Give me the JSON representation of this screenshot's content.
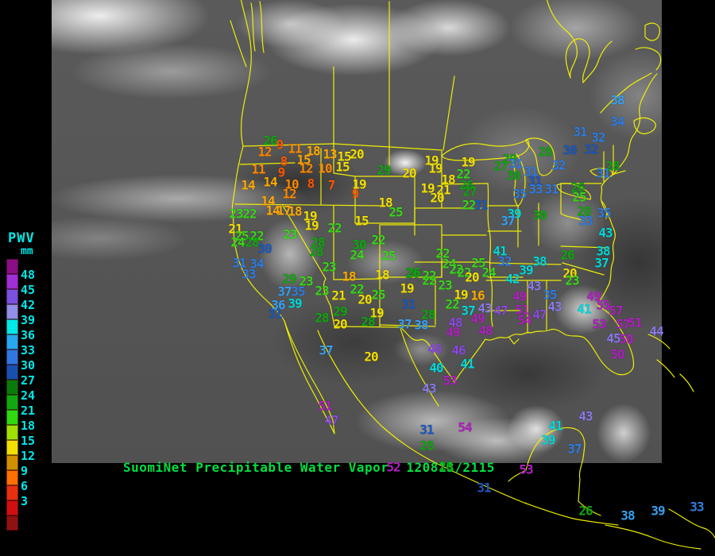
{
  "legend": {
    "title": "PWV",
    "units": "mm",
    "tick_labels": [
      "48",
      "45",
      "42",
      "39",
      "36",
      "33",
      "30",
      "27",
      "24",
      "21",
      "18",
      "15",
      "12",
      "9",
      "6",
      "3"
    ],
    "cells": [
      {
        "label": "",
        "color": "#8a0f86"
      },
      {
        "label": "48",
        "color": "#a02fd8"
      },
      {
        "label": "45",
        "color": "#7a52e2"
      },
      {
        "label": "42",
        "color": "#9090e8"
      },
      {
        "label": "39",
        "color": "#00e8e8"
      },
      {
        "label": "36",
        "color": "#28a8f0"
      },
      {
        "label": "33",
        "color": "#3078e0"
      },
      {
        "label": "30",
        "color": "#1850b0"
      },
      {
        "label": "27",
        "color": "#0a7a0a"
      },
      {
        "label": "24",
        "color": "#10a810"
      },
      {
        "label": "21",
        "color": "#30d810"
      },
      {
        "label": "18",
        "color": "#a0e000"
      },
      {
        "label": "15",
        "color": "#f0e000"
      },
      {
        "label": "12",
        "color": "#d09000"
      },
      {
        "label": "9",
        "color": "#ff7000"
      },
      {
        "label": "6",
        "color": "#e83010"
      },
      {
        "label": "3",
        "color": "#d01010"
      },
      {
        "label": "",
        "color": "#8f1212"
      }
    ]
  },
  "footer": {
    "product": "SuomiNet Precipitable Water Vapor",
    "timestamp": "120813/2115",
    "color": "#00e040"
  },
  "colors": {
    "map_outline": "#f6f600",
    "background": "#000000",
    "legend_text": "#00e8e8"
  },
  "palette": {
    "o9": "#ff5500",
    "o12": "#ff8800",
    "a15": "#ffaa00",
    "y18": "#f2e000",
    "g22": "#38d818",
    "g26": "#0fa80f",
    "b30": "#1b58c0",
    "b32": "#2f7ce2",
    "b36": "#38a0f0",
    "c39": "#00d8d8",
    "v43": "#8878e8",
    "v46": "#8a48e0",
    "p49": "#b020c0"
  },
  "stations": [
    [
      340,
      177,
      "26",
      "g26"
    ],
    [
      352,
      182,
      "9",
      "o9"
    ],
    [
      333,
      191,
      "12",
      "o12"
    ],
    [
      371,
      187,
      "11",
      "o12"
    ],
    [
      394,
      190,
      "18",
      "a15"
    ],
    [
      415,
      194,
      "13",
      "a15"
    ],
    [
      433,
      197,
      "15",
      "y18"
    ],
    [
      449,
      194,
      "20",
      "y18"
    ],
    [
      357,
      203,
      "8",
      "o9"
    ],
    [
      382,
      201,
      "15",
      "a15"
    ],
    [
      385,
      212,
      "12",
      "o12"
    ],
    [
      409,
      212,
      "10",
      "o12"
    ],
    [
      431,
      210,
      "15",
      "y18"
    ],
    [
      325,
      213,
      "11",
      "o12"
    ],
    [
      354,
      217,
      "9",
      "o9"
    ],
    [
      312,
      233,
      "14",
      "a15"
    ],
    [
      340,
      229,
      "14",
      "a15"
    ],
    [
      367,
      232,
      "10",
      "o12"
    ],
    [
      391,
      231,
      "8",
      "o9"
    ],
    [
      417,
      233,
      "7",
      "o9"
    ],
    [
      452,
      232,
      "19",
      "y18"
    ],
    [
      447,
      244,
      "9",
      "o9"
    ],
    [
      364,
      244,
      "12",
      "o12"
    ],
    [
      337,
      253,
      "14",
      "a15"
    ],
    [
      343,
      265,
      "14",
      "a15"
    ],
    [
      357,
      265,
      "17",
      "a15"
    ],
    [
      371,
      266,
      "18",
      "a15"
    ],
    [
      390,
      272,
      "19",
      "y18"
    ],
    [
      455,
      278,
      "15",
      "y18"
    ],
    [
      485,
      255,
      "18",
      "y18"
    ],
    [
      498,
      267,
      "25",
      "g22"
    ],
    [
      297,
      269,
      "23",
      "g22"
    ],
    [
      314,
      269,
      "22",
      "g22"
    ],
    [
      296,
      288,
      "21",
      "y18"
    ],
    [
      304,
      297,
      "25",
      "g22"
    ],
    [
      323,
      297,
      "22",
      "g22"
    ],
    [
      365,
      295,
      "23",
      "g22"
    ],
    [
      299,
      305,
      "24",
      "g22"
    ],
    [
      317,
      305,
      "28",
      "g26"
    ],
    [
      333,
      313,
      "30",
      "b30"
    ],
    [
      301,
      331,
      "31",
      "b32"
    ],
    [
      323,
      332,
      "34",
      "b32"
    ],
    [
      313,
      345,
      "33",
      "b32"
    ],
    [
      358,
      367,
      "37",
      "b36"
    ],
    [
      375,
      367,
      "35",
      "b32"
    ],
    [
      350,
      384,
      "36",
      "b36"
    ],
    [
      371,
      382,
      "39",
      "c39"
    ],
    [
      346,
      395,
      "31",
      "b30"
    ],
    [
      392,
      284,
      "19",
      "y18"
    ],
    [
      421,
      287,
      "22",
      "g22"
    ],
    [
      400,
      305,
      "28",
      "g26"
    ],
    [
      398,
      317,
      "28",
      "g26"
    ],
    [
      452,
      308,
      "30",
      "g26"
    ],
    [
      476,
      302,
      "22",
      "g22"
    ],
    [
      449,
      321,
      "24",
      "g22"
    ],
    [
      489,
      322,
      "25",
      "g22"
    ],
    [
      414,
      336,
      "23",
      "g22"
    ],
    [
      439,
      348,
      "18",
      "a15"
    ],
    [
      481,
      346,
      "18",
      "y18"
    ],
    [
      519,
      344,
      "26",
      "g26"
    ],
    [
      364,
      351,
      "29",
      "g26"
    ],
    [
      385,
      354,
      "23",
      "g22"
    ],
    [
      405,
      366,
      "23",
      "g22"
    ],
    [
      426,
      372,
      "21",
      "y18"
    ],
    [
      449,
      364,
      "22",
      "g22"
    ],
    [
      476,
      371,
      "25",
      "g22"
    ],
    [
      459,
      377,
      "20",
      "y18"
    ],
    [
      512,
      363,
      "19",
      "y18"
    ],
    [
      540,
      353,
      "22",
      "g22"
    ],
    [
      428,
      392,
      "29",
      "g26"
    ],
    [
      514,
      383,
      "31",
      "b30"
    ],
    [
      474,
      394,
      "19",
      "y18"
    ],
    [
      539,
      396,
      "28",
      "g26"
    ],
    [
      428,
      408,
      "20",
      "y18"
    ],
    [
      463,
      405,
      "28",
      "g26"
    ],
    [
      405,
      400,
      "28",
      "g26"
    ],
    [
      509,
      408,
      "37",
      "b36"
    ],
    [
      530,
      409,
      "38",
      "b36"
    ],
    [
      410,
      441,
      "37",
      "b36"
    ],
    [
      467,
      449,
      "20",
      "y18"
    ],
    [
      483,
      214,
      "29",
      "g26"
    ],
    [
      515,
      218,
      "20",
      "y18"
    ],
    [
      543,
      202,
      "19",
      "y18"
    ],
    [
      548,
      212,
      "19",
      "y18"
    ],
    [
      589,
      204,
      "19",
      "y18"
    ],
    [
      564,
      226,
      "18",
      "y18"
    ],
    [
      583,
      219,
      "22",
      "g22"
    ],
    [
      587,
      233,
      "26",
      "g26"
    ],
    [
      538,
      237,
      "19",
      "y18"
    ],
    [
      558,
      239,
      "21",
      "y18"
    ],
    [
      591,
      241,
      "27",
      "g26"
    ],
    [
      550,
      249,
      "20",
      "y18"
    ],
    [
      590,
      258,
      "22",
      "g22"
    ],
    [
      605,
      258,
      "31",
      "b30"
    ],
    [
      641,
      200,
      "29",
      "g26"
    ],
    [
      630,
      209,
      "27",
      "g26"
    ],
    [
      649,
      206,
      "31",
      "b32"
    ],
    [
      646,
      221,
      "30",
      "g26"
    ],
    [
      668,
      216,
      "31",
      "b32"
    ],
    [
      673,
      228,
      "31",
      "b30"
    ],
    [
      686,
      191,
      "28",
      "g26"
    ],
    [
      703,
      208,
      "32",
      "b32"
    ],
    [
      717,
      189,
      "30",
      "b30"
    ],
    [
      730,
      166,
      "31",
      "b32"
    ],
    [
      753,
      173,
      "32",
      "b32"
    ],
    [
      744,
      188,
      "32",
      "b30"
    ],
    [
      654,
      244,
      "35",
      "b32"
    ],
    [
      674,
      238,
      "33",
      "b32"
    ],
    [
      694,
      238,
      "31",
      "b32"
    ],
    [
      647,
      269,
      "39",
      "c39"
    ],
    [
      639,
      278,
      "37",
      "b36"
    ],
    [
      679,
      271,
      "30",
      "g26"
    ],
    [
      727,
      236,
      "26",
      "g26"
    ],
    [
      729,
      248,
      "25",
      "g22"
    ],
    [
      777,
      126,
      "38",
      "b36"
    ],
    [
      777,
      153,
      "34",
      "b32"
    ],
    [
      771,
      209,
      "28",
      "g26"
    ],
    [
      759,
      218,
      "31",
      "b32"
    ],
    [
      735,
      266,
      "28",
      "g26"
    ],
    [
      737,
      278,
      "33",
      "b32"
    ],
    [
      760,
      268,
      "35",
      "b32"
    ],
    [
      762,
      293,
      "43",
      "c39"
    ],
    [
      759,
      316,
      "38",
      "c39"
    ],
    [
      757,
      331,
      "37",
      "c39"
    ],
    [
      714,
      321,
      "26",
      "g26"
    ],
    [
      717,
      344,
      "20",
      "y18"
    ],
    [
      720,
      353,
      "23",
      "g22"
    ],
    [
      557,
      319,
      "22",
      "g22"
    ],
    [
      565,
      332,
      "24",
      "g22"
    ],
    [
      574,
      339,
      "22",
      "g22"
    ],
    [
      584,
      343,
      "22",
      "g22"
    ],
    [
      594,
      349,
      "20",
      "y18"
    ],
    [
      602,
      331,
      "25",
      "g22"
    ],
    [
      615,
      343,
      "24",
      "g22"
    ],
    [
      520,
      343,
      "26",
      "g26"
    ],
    [
      540,
      347,
      "22",
      "g22"
    ],
    [
      560,
      359,
      "23",
      "g22"
    ],
    [
      580,
      371,
      "19",
      "y18"
    ],
    [
      601,
      372,
      "16",
      "a15"
    ],
    [
      569,
      383,
      "22",
      "g22"
    ],
    [
      589,
      391,
      "37",
      "c39"
    ],
    [
      610,
      388,
      "43",
      "v43"
    ],
    [
      630,
      391,
      "47",
      "v46"
    ],
    [
      654,
      373,
      "49",
      "p49"
    ],
    [
      657,
      390,
      "51",
      "p49"
    ],
    [
      660,
      403,
      "54",
      "p49"
    ],
    [
      573,
      406,
      "48",
      "v46"
    ],
    [
      570,
      418,
      "49",
      "p49"
    ],
    [
      601,
      401,
      "49",
      "p49"
    ],
    [
      611,
      416,
      "48",
      "p49"
    ],
    [
      629,
      316,
      "41",
      "c39"
    ],
    [
      635,
      329,
      "32",
      "b32"
    ],
    [
      645,
      351,
      "42",
      "c39"
    ],
    [
      662,
      340,
      "39",
      "c39"
    ],
    [
      679,
      329,
      "38",
      "c39"
    ],
    [
      672,
      360,
      "43",
      "v43"
    ],
    [
      692,
      371,
      "35",
      "b32"
    ],
    [
      698,
      386,
      "43",
      "v43"
    ],
    [
      679,
      396,
      "47",
      "v46"
    ],
    [
      735,
      389,
      "41",
      "c39"
    ],
    [
      747,
      373,
      "49",
      "p49"
    ],
    [
      759,
      384,
      "55",
      "p49"
    ],
    [
      775,
      391,
      "57",
      "p49"
    ],
    [
      754,
      408,
      "53",
      "p49"
    ],
    [
      784,
      408,
      "57",
      "p49"
    ],
    [
      799,
      406,
      "51",
      "p49"
    ],
    [
      772,
      426,
      "45",
      "v43"
    ],
    [
      788,
      427,
      "50",
      "p49"
    ],
    [
      777,
      446,
      "50",
      "p49"
    ],
    [
      826,
      417,
      "44",
      "v43"
    ],
    [
      547,
      439,
      "46",
      "v46"
    ],
    [
      577,
      441,
      "46",
      "v46"
    ],
    [
      588,
      458,
      "41",
      "c39"
    ],
    [
      549,
      463,
      "40",
      "c39"
    ],
    [
      566,
      479,
      "53",
      "p49"
    ],
    [
      540,
      489,
      "43",
      "v43"
    ],
    [
      409,
      511,
      "51",
      "p49"
    ],
    [
      417,
      529,
      "47",
      "v46"
    ],
    [
      537,
      541,
      "31",
      "b30"
    ],
    [
      537,
      561,
      "28",
      "g26"
    ],
    [
      585,
      538,
      "54",
      "p49"
    ],
    [
      495,
      588,
      "52",
      "p49"
    ],
    [
      561,
      587,
      "26",
      "g26"
    ],
    [
      609,
      614,
      "31",
      "b30"
    ],
    [
      662,
      591,
      "53",
      "p49"
    ],
    [
      699,
      536,
      "41",
      "c39"
    ],
    [
      690,
      554,
      "39",
      "c39"
    ],
    [
      723,
      565,
      "37",
      "b32"
    ],
    [
      737,
      524,
      "43",
      "v43"
    ],
    [
      737,
      643,
      "26",
      "g26"
    ],
    [
      790,
      649,
      "38",
      "b36"
    ],
    [
      828,
      643,
      "39",
      "b36"
    ],
    [
      877,
      638,
      "33",
      "b32"
    ]
  ]
}
